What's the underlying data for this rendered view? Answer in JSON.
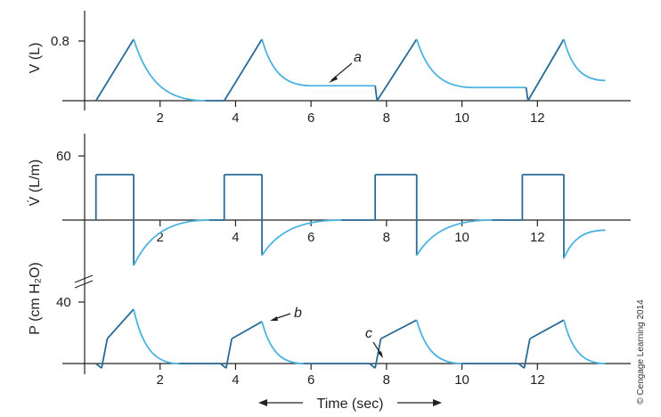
{
  "chart_data": [
    {
      "type": "line",
      "title": "",
      "ylabel": "V (L)",
      "y_tick_labels": [
        "0.8"
      ],
      "y_ticks": [
        0.8
      ],
      "ylim": [
        0,
        1.0
      ],
      "xlim": [
        0,
        14
      ],
      "x_ticks": [
        2,
        4,
        6,
        8,
        10,
        12
      ],
      "x_tick_labels": [
        "2",
        "4",
        "6",
        "8",
        "10",
        "12"
      ],
      "grid": false,
      "colors": {
        "rise": "#2a6b96",
        "fall": "#4ab3e0"
      },
      "annotations": [
        {
          "text": "a",
          "x": 6.1,
          "y": 0.3
        }
      ],
      "series": [
        {
          "values_xy": [
            [
              0.3,
              0.05
            ],
            [
              1.3,
              0.75
            ],
            [
              3.2,
              0.05
            ],
            [
              3.7,
              0.05
            ],
            [
              4.7,
              0.75
            ],
            [
              6.0,
              0.22
            ],
            [
              7.7,
              0.22
            ],
            [
              7.75,
              0.05
            ],
            [
              8.8,
              0.75
            ],
            [
              10.3,
              0.2
            ],
            [
              11.7,
              0.2
            ],
            [
              11.75,
              0.05
            ],
            [
              12.7,
              0.75
            ],
            [
              13.8,
              0.28
            ]
          ]
        }
      ]
    },
    {
      "type": "line",
      "title": "",
      "ylabel": "V̇ (L/m)",
      "y_tick_labels": [
        "60"
      ],
      "y_ticks": [
        60
      ],
      "ylim": [
        -50,
        80
      ],
      "xlim": [
        0,
        14
      ],
      "x_ticks": [
        2,
        4,
        6,
        8,
        10,
        12
      ],
      "x_tick_labels": [
        "2",
        "4",
        "6",
        "8",
        "10",
        "12"
      ],
      "grid": false,
      "colors": {
        "rise": "#2a6b96",
        "fall": "#4ab3e0"
      },
      "series": [
        {
          "values_xy": [
            [
              0.3,
              0
            ],
            [
              0.3,
              45
            ],
            [
              1.3,
              45
            ],
            [
              1.3,
              -45
            ],
            [
              3.3,
              0
            ],
            [
              3.7,
              0
            ],
            [
              3.7,
              45
            ],
            [
              4.7,
              45
            ],
            [
              4.7,
              -35
            ],
            [
              6.8,
              0
            ],
            [
              7.7,
              0
            ],
            [
              7.7,
              45
            ],
            [
              8.8,
              45
            ],
            [
              8.8,
              -35
            ],
            [
              10.8,
              0
            ],
            [
              11.6,
              0
            ],
            [
              11.6,
              45
            ],
            [
              12.7,
              45
            ],
            [
              12.7,
              -38
            ],
            [
              13.8,
              -10
            ]
          ]
        }
      ]
    },
    {
      "type": "line",
      "title": "",
      "ylabel": "P (cm H₂O)",
      "xlabel": "Time (sec)",
      "y_tick_labels": [
        "40"
      ],
      "y_ticks": [
        40
      ],
      "ylim": [
        0,
        46
      ],
      "xlim": [
        0,
        14
      ],
      "x_ticks": [
        2,
        4,
        6,
        8,
        10,
        12
      ],
      "x_tick_labels": [
        "2",
        "4",
        "6",
        "8",
        "10",
        "12"
      ],
      "grid": false,
      "colors": {
        "rise": "#2a6b96",
        "fall": "#4ab3e0"
      },
      "annotations": [
        {
          "text": "b",
          "x": 5.3,
          "y": 33
        },
        {
          "text": "c",
          "x": 7.4,
          "y": 20
        }
      ],
      "series": [
        {
          "values_xy": [
            [
              0.3,
              0
            ],
            [
              0.45,
              -3
            ],
            [
              0.6,
              16
            ],
            [
              1.3,
              35
            ],
            [
              2.5,
              0
            ],
            [
              3.6,
              0
            ],
            [
              3.75,
              -3
            ],
            [
              3.9,
              16
            ],
            [
              4.7,
              27
            ],
            [
              5.8,
              0
            ],
            [
              7.55,
              0
            ],
            [
              7.7,
              -3
            ],
            [
              7.85,
              16
            ],
            [
              8.8,
              28
            ],
            [
              10.0,
              0
            ],
            [
              11.5,
              0
            ],
            [
              11.65,
              -3
            ],
            [
              11.8,
              16
            ],
            [
              12.7,
              28
            ],
            [
              13.8,
              0
            ]
          ]
        }
      ]
    }
  ],
  "credit": "© Cengage Learning 2014"
}
